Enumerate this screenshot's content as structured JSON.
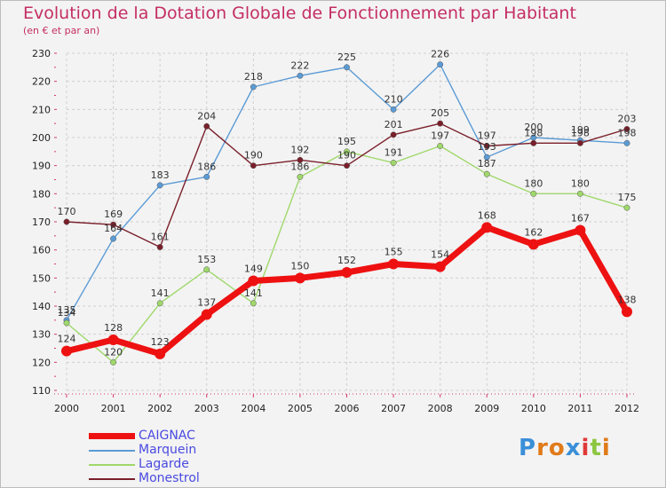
{
  "header": {
    "title": "Evolution de la Dotation Globale de Fonctionnement par Habitant",
    "subtitle": "(en € et par an)"
  },
  "logo": {
    "text": "Proxiti",
    "letters": [
      {
        "ch": "P",
        "color": "#3a8fd8"
      },
      {
        "ch": "r",
        "color": "#e07b1a"
      },
      {
        "ch": "o",
        "color": "#e07b1a"
      },
      {
        "ch": "x",
        "color": "#3a8fd8"
      },
      {
        "ch": "i",
        "color": "#e03a3a"
      },
      {
        "ch": "t",
        "color": "#8cc63f"
      },
      {
        "ch": "i",
        "color": "#e07b1a"
      }
    ]
  },
  "chart_data": {
    "type": "line",
    "title": "Evolution de la Dotation Globale de Fonctionnement par Habitant",
    "subtitle": "(en € et par an)",
    "xlabel": "",
    "ylabel": "",
    "x": [
      2000,
      2001,
      2002,
      2003,
      2004,
      2005,
      2006,
      2007,
      2008,
      2009,
      2010,
      2011,
      2012
    ],
    "ylim": [
      110,
      230
    ],
    "yticks": [
      110,
      120,
      130,
      140,
      150,
      160,
      170,
      180,
      190,
      200,
      210,
      220,
      230
    ],
    "grid": true,
    "legend_position": "bottom-left",
    "series": [
      {
        "name": "CAIGNAC",
        "color": "#ee1111",
        "emphasis": true,
        "values": [
          124,
          128,
          123,
          137,
          149,
          150,
          152,
          155,
          154,
          168,
          162,
          167,
          138
        ]
      },
      {
        "name": "Marquein",
        "color": "#5b9bd5",
        "emphasis": false,
        "values": [
          135,
          164,
          183,
          186,
          218,
          222,
          225,
          210,
          226,
          193,
          200,
          199,
          198
        ]
      },
      {
        "name": "Lagarde",
        "color": "#9fd86b",
        "emphasis": false,
        "values": [
          134,
          120,
          141,
          153,
          141,
          186,
          195,
          191,
          197,
          187,
          180,
          180,
          175
        ]
      },
      {
        "name": "Monestrol",
        "color": "#7a1f2a",
        "emphasis": false,
        "values": [
          170,
          169,
          161,
          204,
          190,
          192,
          190,
          201,
          205,
          197,
          198,
          198,
          203
        ]
      }
    ]
  }
}
